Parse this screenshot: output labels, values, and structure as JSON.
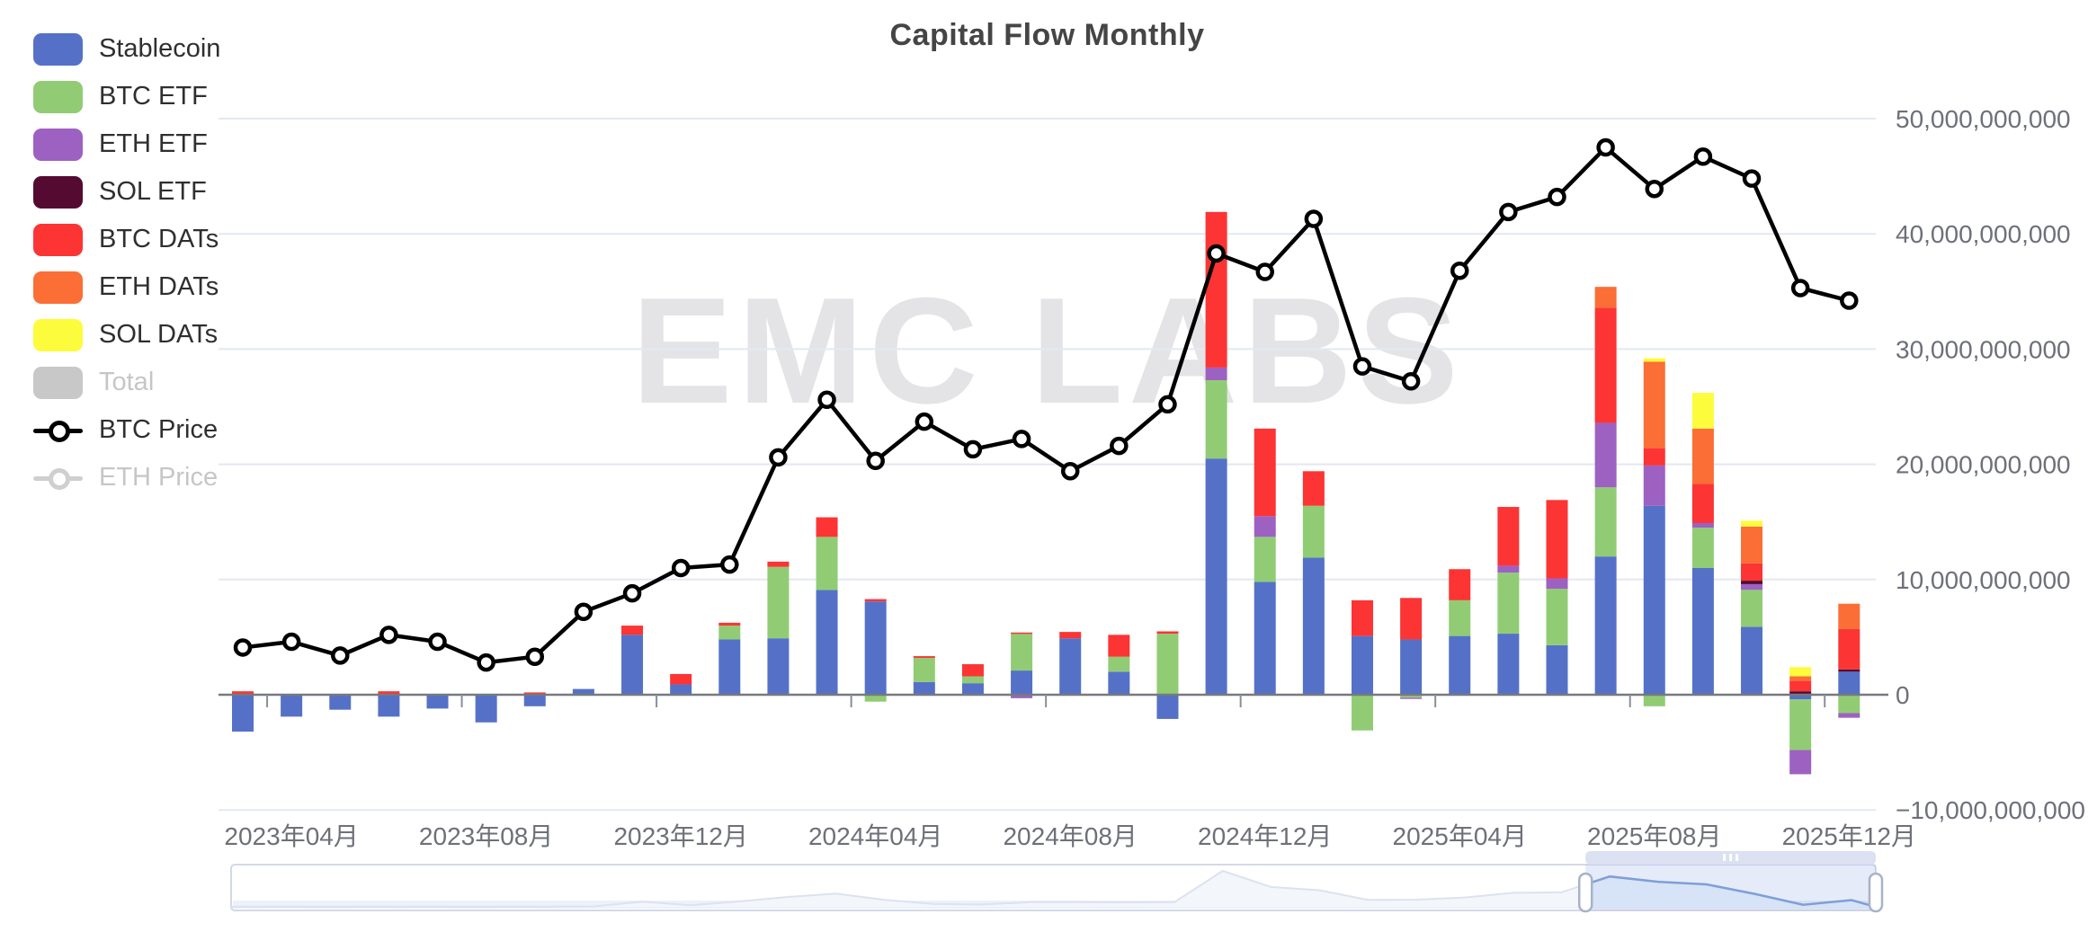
{
  "title": "Capital Flow Monthly",
  "watermark": "EMC LABS",
  "legend": {
    "items": [
      {
        "label": "Stablecoin",
        "type": "swatch",
        "color": "#5571C7",
        "enabled": true
      },
      {
        "label": "BTC ETF",
        "type": "swatch",
        "color": "#91CC75",
        "enabled": true
      },
      {
        "label": "ETH ETF",
        "type": "swatch",
        "color": "#9D61C2",
        "enabled": true
      },
      {
        "label": "SOL ETF",
        "type": "swatch",
        "color": "#550A31",
        "enabled": true
      },
      {
        "label": "BTC DATs",
        "type": "swatch",
        "color": "#FC3434",
        "enabled": true
      },
      {
        "label": "ETH DATs",
        "type": "swatch",
        "color": "#FB6E35",
        "enabled": true
      },
      {
        "label": "SOL DATs",
        "type": "swatch",
        "color": "#FCFC3C",
        "enabled": true
      },
      {
        "label": "Total",
        "type": "swatch",
        "color": "#C8C8C8",
        "enabled": false
      },
      {
        "label": "BTC Price",
        "type": "line",
        "color": "#000000",
        "enabled": true
      },
      {
        "label": "ETH Price",
        "type": "line",
        "color": "#CFCFCF",
        "enabled": false
      }
    ]
  },
  "y_axis": {
    "side": "right",
    "labels": [
      "50,000,000,000",
      "40,000,000,000",
      "30,000,000,000",
      "20,000,000,000",
      "10,000,000,000",
      "0",
      "−10,000,000,000"
    ],
    "values_billion": [
      50,
      40,
      30,
      20,
      10,
      0,
      -10
    ]
  },
  "x_axis": {
    "labels": [
      "2023年04月",
      "2023年08月",
      "2023年12月",
      "2024年04月",
      "2024年08月",
      "2024年12月",
      "2025年04月",
      "2025年08月",
      "2025年12月"
    ],
    "label_month_indices": [
      1,
      5,
      9,
      13,
      17,
      21,
      25,
      29,
      33
    ]
  },
  "chart_data": {
    "type": "bar",
    "subtype": "stacked-bar-with-line",
    "title": "Capital Flow Monthly",
    "ylabel": "USD",
    "ylim_billion": [
      -10,
      50
    ],
    "grid": true,
    "legend_position": "top-left",
    "categories": [
      "2023-03",
      "2023-04",
      "2023-05",
      "2023-06",
      "2023-07",
      "2023-08",
      "2023-09",
      "2023-10",
      "2023-11",
      "2023-12",
      "2024-01",
      "2024-02",
      "2024-03",
      "2024-04",
      "2024-05",
      "2024-06",
      "2024-07",
      "2024-08",
      "2024-09",
      "2024-10",
      "2024-11",
      "2024-12",
      "2025-01",
      "2025-02",
      "2025-03",
      "2025-04",
      "2025-05",
      "2025-06",
      "2025-07",
      "2025-08",
      "2025-09",
      "2025-10",
      "2025-11",
      "2025-12"
    ],
    "unit": "billion USD",
    "series": [
      {
        "name": "Stablecoin",
        "color": "#5571C7",
        "values": [
          -3.2,
          -1.9,
          -1.3,
          -1.9,
          -1.2,
          -2.4,
          -1.0,
          0.5,
          5.2,
          0.9,
          4.8,
          4.9,
          9.1,
          8.1,
          1.1,
          1.0,
          2.1,
          4.9,
          2.0,
          -2.1,
          20.5,
          9.8,
          11.9,
          5.1,
          4.8,
          5.1,
          5.3,
          4.3,
          12.0,
          16.4,
          11.0,
          5.9,
          -0.4,
          2.0
        ]
      },
      {
        "name": "BTC ETF",
        "color": "#91CC75",
        "values": [
          0,
          0,
          0,
          0,
          0,
          0,
          0,
          0,
          0,
          0,
          1.2,
          6.2,
          4.6,
          -0.6,
          2.1,
          0.6,
          3.2,
          0,
          1.3,
          5.3,
          6.8,
          3.9,
          4.5,
          -3.1,
          -0.25,
          3.1,
          5.3,
          4.9,
          6.0,
          -1.0,
          3.5,
          3.2,
          -4.4,
          -1.6
        ]
      },
      {
        "name": "ETH ETF",
        "color": "#9D61C2",
        "values": [
          0,
          0,
          0,
          0,
          0,
          0,
          0,
          0,
          0,
          0,
          0,
          0,
          0,
          0,
          0,
          0,
          -0.3,
          0,
          0,
          0,
          1.1,
          1.8,
          0,
          0,
          -0.1,
          0,
          0.6,
          0.9,
          5.6,
          3.5,
          0.4,
          0.5,
          -2.1,
          -0.4
        ]
      },
      {
        "name": "SOL ETF",
        "color": "#550A31",
        "values": [
          0,
          0,
          0,
          0,
          0,
          0,
          0,
          0,
          0,
          0,
          0,
          0,
          0,
          0,
          0,
          0,
          0,
          0,
          0,
          0,
          0,
          0,
          0,
          0,
          0,
          0,
          0,
          0,
          0,
          0,
          0,
          0.3,
          0.3,
          0.2
        ]
      },
      {
        "name": "BTC DATs",
        "color": "#FC3434",
        "values": [
          0.3,
          0,
          0,
          0.3,
          0,
          0,
          0.2,
          0,
          0.8,
          0.9,
          0.25,
          0.45,
          1.7,
          0.2,
          0.15,
          1.05,
          0.1,
          0.55,
          1.9,
          0.2,
          13.5,
          7.6,
          3.0,
          3.1,
          3.6,
          2.7,
          5.1,
          6.8,
          10.0,
          1.5,
          3.4,
          1.5,
          0.9,
          3.5
        ]
      },
      {
        "name": "ETH DATs",
        "color": "#FB6E35",
        "values": [
          0,
          0,
          0,
          0,
          0,
          0,
          0,
          0,
          0,
          0,
          0,
          0,
          0,
          0,
          0,
          0,
          0,
          0,
          0,
          0,
          0,
          0,
          0,
          0,
          0,
          0,
          0,
          0,
          1.8,
          7.5,
          4.8,
          3.2,
          0.4,
          2.2
        ]
      },
      {
        "name": "SOL DATs",
        "color": "#FCFC3C",
        "values": [
          0,
          0,
          0,
          0,
          0,
          0,
          0,
          0,
          0,
          0,
          0,
          0,
          0,
          0,
          0,
          0,
          0,
          0,
          0,
          0,
          0,
          0,
          0,
          0,
          0,
          0,
          0,
          0,
          0,
          0.3,
          3.1,
          0.5,
          0.8,
          0
        ]
      }
    ],
    "line_series": {
      "name": "BTC Price",
      "color": "#000000",
      "marker": "open-circle",
      "axis_values_billion": [
        4.1,
        4.6,
        3.4,
        5.2,
        4.6,
        2.8,
        3.3,
        7.2,
        8.8,
        11.0,
        11.3,
        20.6,
        25.6,
        20.3,
        23.7,
        21.3,
        22.2,
        19.4,
        21.6,
        25.2,
        38.3,
        36.7,
        41.3,
        28.5,
        27.2,
        36.8,
        41.9,
        43.2,
        47.5,
        43.9,
        46.7,
        44.8,
        35.3,
        34.2
      ]
    }
  },
  "navigator": {
    "selection_start_month": "2025-07",
    "selection_end_month": "2025-12",
    "grip_icon": "|||"
  },
  "colors": {
    "grid_line": "#E3E8F3",
    "axis_line": "#76797F",
    "axis_text": "#6E7079",
    "watermark": "#E4E4E7",
    "nav_border": "#D3D9E8",
    "nav_fill_out": "#F3F6FB",
    "nav_line_out": "#DCE2EF",
    "nav_fill_in": "#D7E3F6",
    "nav_line_in": "#7E9FD8",
    "nav_select": "rgba(135,163,226,0.22)",
    "nav_grip_bar": "#DBE1F0",
    "handle_border": "#A8B2C8"
  }
}
